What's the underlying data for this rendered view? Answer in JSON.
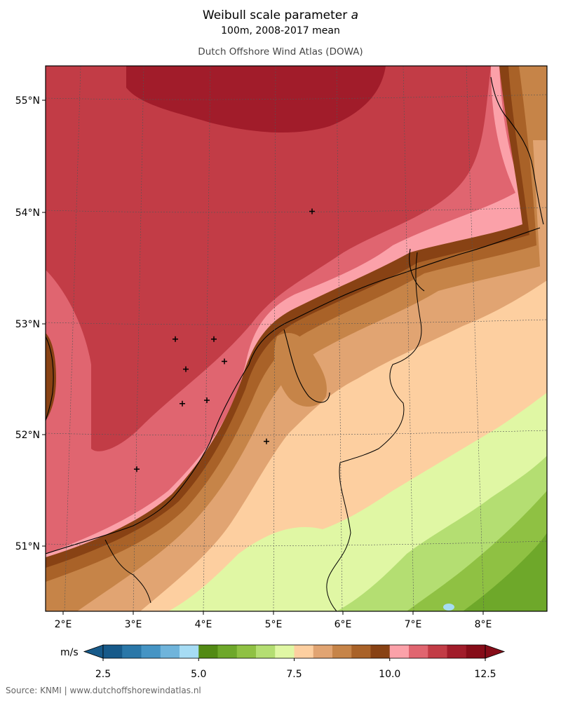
{
  "header": {
    "title_main": "Weibull scale parameter ",
    "title_var": "a",
    "subtitle": "100m, 2008-2017 mean",
    "atlas_name": "Dutch Offshore Wind Atlas (DOWA)"
  },
  "footer": {
    "source": "Source: KNMI | www.dutchoffshorewindatlas.nl"
  },
  "axes": {
    "lat_labels": [
      "55°N",
      "54°N",
      "53°N",
      "52°N",
      "51°N"
    ],
    "lon_labels": [
      "2°E",
      "3°E",
      "4°E",
      "5°E",
      "6°E",
      "7°E",
      "8°E"
    ]
  },
  "colorbar": {
    "unit": "m/s",
    "tick_labels": [
      "2.5",
      "5.0",
      "7.5",
      "10.0",
      "12.5"
    ],
    "colors": [
      "#175a8a",
      "#2a77a8",
      "#4594c4",
      "#6fb4db",
      "#a6dcf4",
      "#528a14",
      "#6ea82a",
      "#8fc143",
      "#b4de72",
      "#e0f7a4",
      "#fdcfa0",
      "#e1a472",
      "#c68448",
      "#a96228",
      "#884214",
      "#fba1a9",
      "#e06570",
      "#c23c46",
      "#a11c2a",
      "#860c18"
    ]
  },
  "stations": [
    {
      "lon": 5.55,
      "lat": 54.0
    },
    {
      "lon": 3.6,
      "lat": 52.85
    },
    {
      "lon": 4.15,
      "lat": 52.85
    },
    {
      "lon": 3.75,
      "lat": 52.58
    },
    {
      "lon": 4.3,
      "lat": 52.65
    },
    {
      "lon": 3.7,
      "lat": 52.27
    },
    {
      "lon": 4.05,
      "lat": 52.3
    },
    {
      "lon": 4.9,
      "lat": 51.93
    },
    {
      "lon": 3.05,
      "lat": 51.68
    }
  ],
  "map_colors": {
    "sea_deep": "#a11c2a",
    "sea_high": "#c23c46",
    "sea_mid": "#e06570",
    "sea_coast": "#fba1a9",
    "coast_dark": "#884214",
    "coast_brown": "#a96228",
    "land_mid": "#c68448",
    "land_tan": "#e1a472",
    "land_peach": "#fdcfa0",
    "land_lightgreen": "#e0f7a4",
    "land_green": "#b4de72",
    "land_midgreen": "#8fc143",
    "land_darkgreen": "#6ea82a",
    "water_light": "#a6dcf4"
  }
}
